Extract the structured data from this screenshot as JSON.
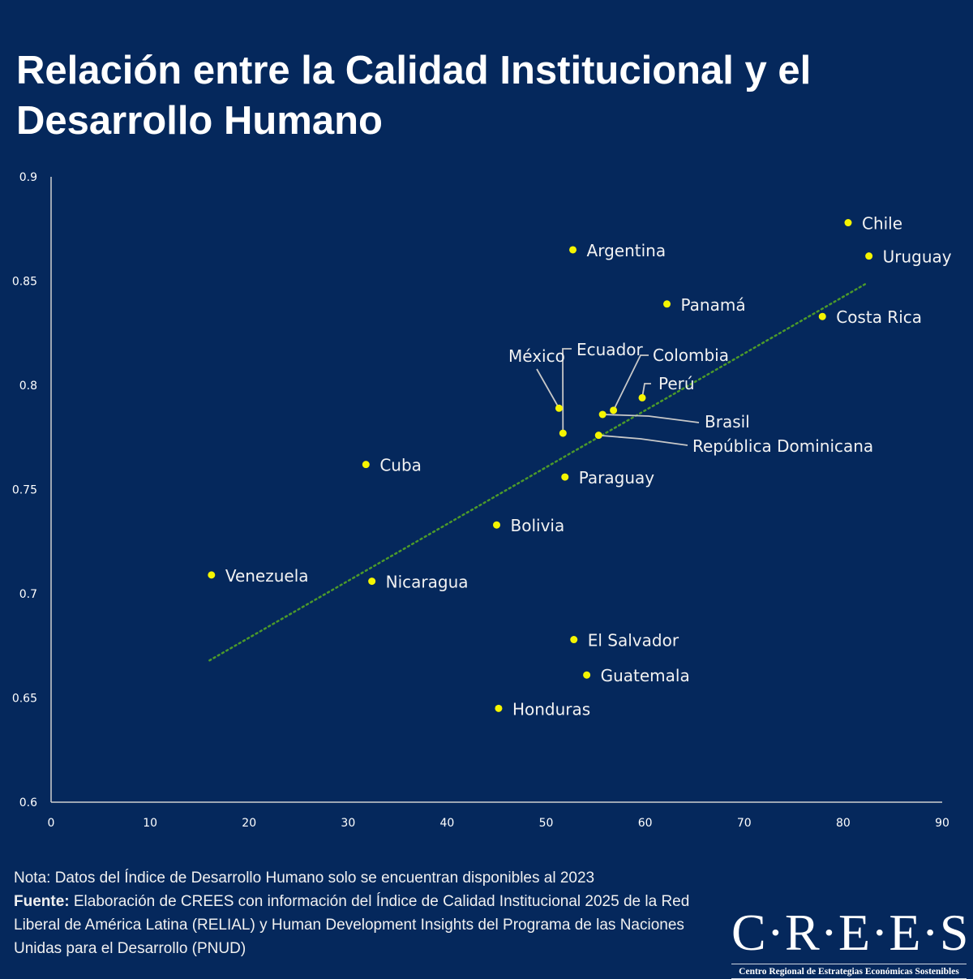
{
  "title": "Relación entre la Calidad Institucional y el Desarrollo Humano",
  "colors": {
    "background": "#05285c",
    "point": "#f5f500",
    "trendline": "#4c9a2a",
    "axis": "#d0d0d0"
  },
  "chart_data": {
    "type": "scatter",
    "title": "Relación entre la Calidad Institucional y el Desarrollo Humano",
    "xlabel": "",
    "ylabel": "",
    "xlim": [
      0,
      90
    ],
    "ylim": [
      0.6,
      0.9
    ],
    "x_ticks": [
      "0",
      "10",
      "20",
      "30",
      "40",
      "50",
      "60",
      "70",
      "80",
      "90"
    ],
    "y_ticks": [
      "0.6",
      "0.65",
      "0.7",
      "0.75",
      "0.8",
      "0.85",
      "0.9"
    ],
    "grid": false,
    "points": [
      {
        "label": "Chile",
        "x": 80.5,
        "y": 0.878
      },
      {
        "label": "Uruguay",
        "x": 82.6,
        "y": 0.862
      },
      {
        "label": "Argentina",
        "x": 52.7,
        "y": 0.865
      },
      {
        "label": "Panamá",
        "x": 62.2,
        "y": 0.839
      },
      {
        "label": "Costa Rica",
        "x": 77.9,
        "y": 0.833
      },
      {
        "label": "México",
        "x": 51.3,
        "y": 0.789
      },
      {
        "label": "Ecuador",
        "x": 51.7,
        "y": 0.777
      },
      {
        "label": "Colombia",
        "x": 56.8,
        "y": 0.788
      },
      {
        "label": "Perú",
        "x": 59.7,
        "y": 0.794
      },
      {
        "label": "Brasil",
        "x": 55.7,
        "y": 0.786
      },
      {
        "label": "República Dominicana",
        "x": 55.3,
        "y": 0.776
      },
      {
        "label": "Cuba",
        "x": 31.8,
        "y": 0.762
      },
      {
        "label": "Paraguay",
        "x": 51.9,
        "y": 0.756
      },
      {
        "label": "Bolivia",
        "x": 45.0,
        "y": 0.733
      },
      {
        "label": "Venezuela",
        "x": 16.2,
        "y": 0.709
      },
      {
        "label": "Nicaragua",
        "x": 32.4,
        "y": 0.706
      },
      {
        "label": "El Salvador",
        "x": 52.8,
        "y": 0.678
      },
      {
        "label": "Guatemala",
        "x": 54.1,
        "y": 0.661
      },
      {
        "label": "Honduras",
        "x": 45.2,
        "y": 0.645
      }
    ],
    "trendline": {
      "type": "linear",
      "x": [
        16.0,
        82.4
      ],
      "y": [
        0.668,
        0.849
      ]
    }
  },
  "notes": {
    "nota": "Nota: Datos del Índice de Desarrollo Humano solo se encuentran disponibles al 2023",
    "fuente_label": "Fuente:",
    "fuente_text": " Elaboración de CREES con información del Índice de Calidad Institucional 2025 de la Red Liberal de América Latina (RELIAL) y Human Development Insights del Programa de las Naciones Unidas para el Desarrollo (PNUD)"
  },
  "logo": {
    "name": "C·R·E·E·S",
    "subtitle": "Centro Regional de Estrategias Económicas Sostenibles"
  }
}
